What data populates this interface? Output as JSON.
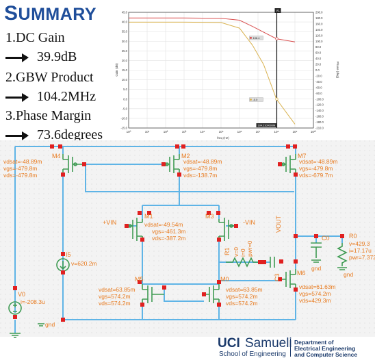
{
  "slide": {
    "title_first": "S",
    "title_rest": "UMMARY",
    "bullets": [
      {
        "label": "1.DC Gain",
        "value": "39.9dB"
      },
      {
        "label": "2.GBW Product",
        "value": "104.2MHz"
      },
      {
        "label": "3.Phase Margin",
        "value": "73.6degrees"
      }
    ]
  },
  "chart_data": {
    "type": "line",
    "xlabel": "freq (Hz)",
    "ylabel": "Gain (dB)",
    "y2label": "Phase (deg)",
    "xscale": "log",
    "xlim": [
      1,
      10000000000
    ],
    "ylim": [
      -15,
      45
    ],
    "y2lim": [
      -210,
      200
    ],
    "x_ticks": [
      "10⁰",
      "10¹",
      "10²",
      "10³",
      "10⁴",
      "10⁵",
      "10⁶",
      "10⁷",
      "10⁸",
      "10⁹",
      "10¹⁰"
    ],
    "y_ticks": [
      "45.0",
      "40.0",
      "35.0",
      "30.0",
      "25.0",
      "20.0",
      "15.0",
      "10.0",
      "5.0",
      "0.0",
      "-5.0",
      "-10.0",
      "-15.0"
    ],
    "y2_ticks": [
      "200.0",
      "180.0",
      "160.0",
      "140.0",
      "120.0",
      "100.0",
      "80.0",
      "60.0",
      "40.0",
      "20.0",
      "0.0",
      "-20.0",
      "-40.0",
      "-60.0",
      "-80.0",
      "-100.0",
      "-120.0",
      "-140.0",
      "-160.0",
      "-180.0",
      "-210.0"
    ],
    "series": [
      {
        "color": "#d94f4f",
        "x": [
          1,
          1000,
          100000,
          1000000,
          5000000,
          20000000,
          100000000,
          1000000000
        ],
        "y_axis": "right",
        "y": [
          180,
          180,
          179,
          172,
          150,
          130,
          106.4,
          95
        ]
      },
      {
        "color": "#d9b24f",
        "x": [
          1,
          1000,
          100000,
          1000000,
          5000000,
          20000000,
          100000000,
          1000000000
        ],
        "y_axis": "left",
        "y": [
          39.9,
          39.9,
          39.7,
          36.8,
          28,
          18,
          0,
          -13
        ]
      }
    ],
    "cursor": {
      "label": "V1",
      "x": 104200000,
      "x_label": "104.2100000M"
    },
    "markers": [
      {
        "label": "106.4",
        "color": "#d94f4f"
      },
      {
        "label": "-0.0",
        "color": "#d9b24f"
      }
    ],
    "grid": true
  },
  "schematic": {
    "transistors": [
      {
        "name": "M4",
        "vdsat": "vdsat=-48.89m",
        "vgs": "vgs=-479.8m",
        "vds": "vds=-479.8m"
      },
      {
        "name": "M2",
        "vdsat": "vdsat=-48.89m",
        "vgs": "vgs=-479.8m",
        "vds": "vds=-138.7m"
      },
      {
        "name": "M7",
        "vdsat": "vdsat=-48.89m",
        "vgs": "vgs=-479.8m",
        "vds": "vds=-679.7m"
      },
      {
        "name": "M1",
        "vdsat": "vdsat=-49.54m",
        "vgs": "vgs=-461.3m",
        "vds": "vds=-387.2m"
      },
      {
        "name": "M3",
        "vdsat": "vdsat=-49.54m",
        "vgs": "vgs=-461.3m",
        "vds": "vds=-387.2m"
      },
      {
        "name": "M5",
        "vdsat": "vdsat=63.85m",
        "vgs": "vgs=574.2m",
        "vds": "vds=574.2m"
      },
      {
        "name": "M0",
        "vdsat": "vdsat=63.85m",
        "vgs": "vgs=574.2m",
        "vds": "vds=574.2m"
      },
      {
        "name": "M6",
        "vdsat": "vdsat=61.63m",
        "vgs": "vgs=574.2m",
        "vds": "vds=429.3m"
      }
    ],
    "labels": {
      "vin_plus": "+VIN",
      "vin_minus": "-VIN",
      "vout": "VOUT",
      "i5": "I5",
      "i5_v": "v=620.2m",
      "v0": "V0",
      "v0_i": "i=-208.3u",
      "gnd1": "gnd",
      "gnd2": "gnd",
      "gnd3": "gnd",
      "r1": "R1",
      "r1_v": "v=0",
      "r1_i": "i=0",
      "r1_pwr": "pwr=0",
      "c3": "C3",
      "c0": "C0",
      "r0": "R0",
      "r0_v": "v=429.3",
      "r0_i": "i=17.17u",
      "r0_pwr": "pwr=7.372"
    }
  },
  "logo": {
    "uci": "UCI",
    "samueli": "Samueli",
    "school": "School of Engineering",
    "dept1": "Department of",
    "dept2": "Electrical Engineering",
    "dept3": "and Computer Science"
  }
}
